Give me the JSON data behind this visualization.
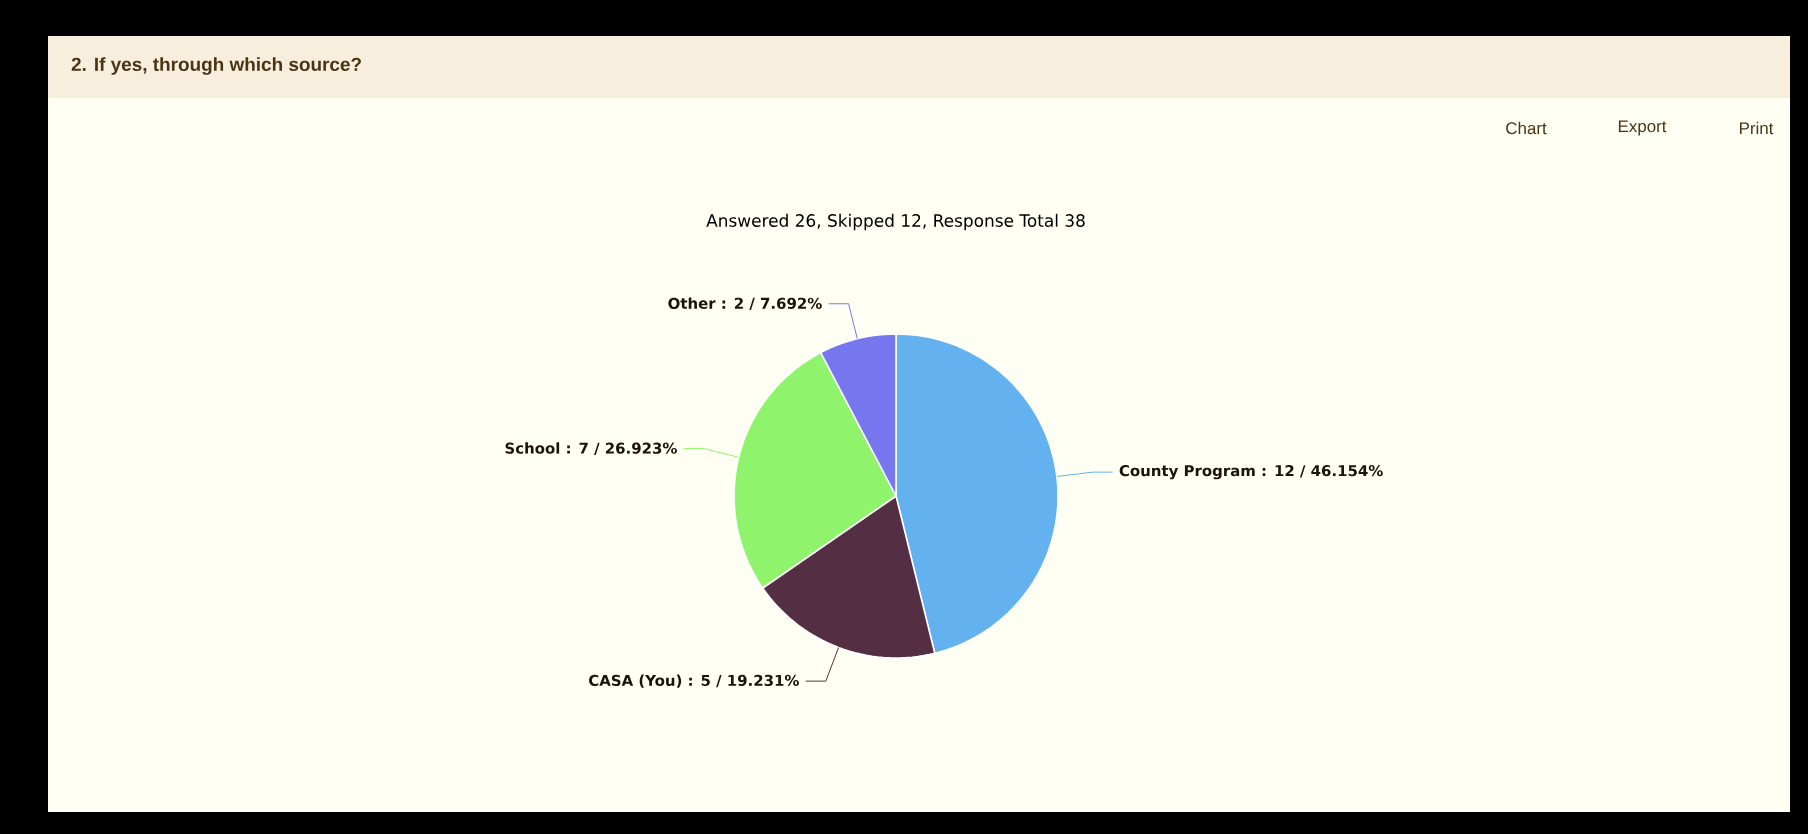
{
  "chart_data": {
    "type": "pie",
    "title": "2.  If yes, through which source?",
    "subtitle": "Answered 26, Skipped 12, Response Total 38",
    "categories": [
      "County Program",
      "CASA (You)",
      "School",
      "Other"
    ],
    "values": [
      12,
      5,
      7,
      2
    ],
    "colors": [
      "#63b2ef",
      "#542e42",
      "#8ff46c",
      "#7676ef"
    ],
    "value_labels": [
      ": 12  /  46.154%",
      ": 5  /  19.231%",
      ": 7  /  26.923%",
      ": 2  /  7.692%"
    ],
    "annotations": [
      "Chart",
      "Export",
      "Print"
    ]
  }
}
